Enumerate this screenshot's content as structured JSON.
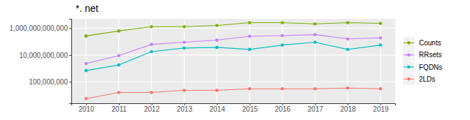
{
  "chart_data": {
    "type": "line",
    "title": "*. net",
    "x": [
      2010,
      2011,
      2012,
      2013,
      2014,
      2015,
      2016,
      2017,
      2018,
      2019
    ],
    "xlim": [
      2009.55,
      2019.45
    ],
    "xticks": [
      2010,
      2011,
      2012,
      2013,
      2014,
      2015,
      2016,
      2017,
      2018,
      2019
    ],
    "ylim": [
      2500000,
      5000000000000
    ],
    "yticks": [
      {
        "value": 100000000,
        "label": "100,000,000"
      },
      {
        "value": 10000000000,
        "label": "10,000,000,000"
      },
      {
        "value": 1000000000000,
        "label": "1,000,000,000,000"
      }
    ],
    "log": "y",
    "grid": true,
    "legend": "right",
    "marker": "circle",
    "series": [
      {
        "name": "Counts",
        "color": "#7CAE00",
        "values": [
          260000000000,
          620000000000,
          1300000000000,
          1300000000000,
          1600000000000,
          2600000000000,
          2600000000000,
          2100000000000,
          2600000000000,
          2300000000000
        ]
      },
      {
        "name": "RRsets",
        "color": "#C77CFF",
        "values": [
          2300000000,
          9000000000,
          62000000000,
          90000000000,
          130000000000,
          250000000000,
          280000000000,
          330000000000,
          160000000000,
          190000000000
        ]
      },
      {
        "name": "FQDNs",
        "color": "#00BFC4",
        "values": [
          690000000,
          1800000000,
          18000000000,
          33000000000,
          37000000000,
          26000000000,
          55000000000,
          90000000000,
          26000000000,
          55000000000
        ]
      },
      {
        "name": "2LDs",
        "color": "#F8766D",
        "values": [
          5500000,
          16000000,
          16000000,
          23000000,
          23000000,
          30000000,
          30000000,
          30000000,
          34000000,
          30000000
        ]
      }
    ]
  }
}
